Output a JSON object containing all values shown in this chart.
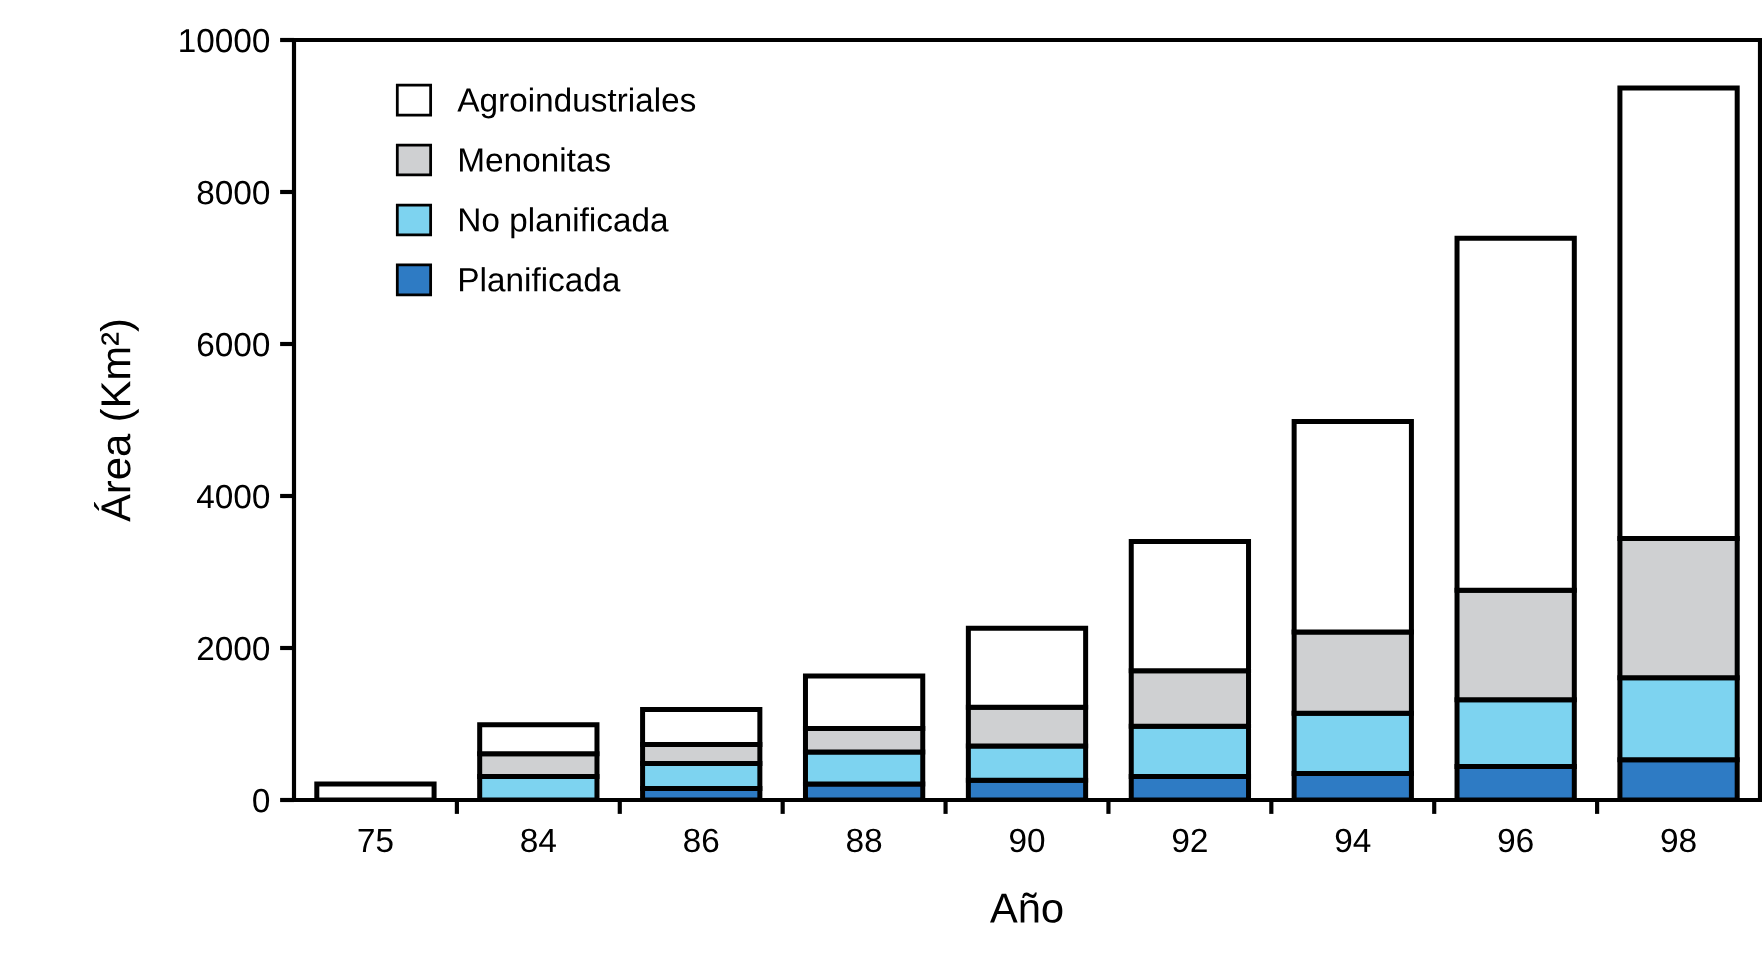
{
  "chart_data": {
    "type": "bar",
    "stacked": true,
    "xlabel": "Año",
    "ylabel": "Área (Km²)",
    "categories": [
      "75",
      "84",
      "86",
      "88",
      "90",
      "92",
      "94",
      "96",
      "98"
    ],
    "series": [
      {
        "name": "Planificada",
        "color": "#2e7bc4",
        "values": [
          0,
          0,
          150,
          210,
          260,
          310,
          350,
          440,
          530
        ]
      },
      {
        "name": "No planificada",
        "color": "#7dd3f0",
        "values": [
          0,
          310,
          330,
          420,
          450,
          660,
          790,
          880,
          1080
        ]
      },
      {
        "name": "Menonitas",
        "color": "#cfd0d2",
        "values": [
          0,
          300,
          250,
          310,
          510,
          730,
          1070,
          1440,
          1830
        ]
      },
      {
        "name": "Agroindustriales",
        "color": "#ffffff",
        "values": [
          210,
          380,
          460,
          690,
          1040,
          1700,
          2770,
          4630,
          5930
        ]
      }
    ],
    "ylim": [
      0,
      10000
    ],
    "yticks": [
      0,
      2000,
      4000,
      6000,
      8000,
      10000
    ],
    "grid": false,
    "legend": "top left"
  }
}
